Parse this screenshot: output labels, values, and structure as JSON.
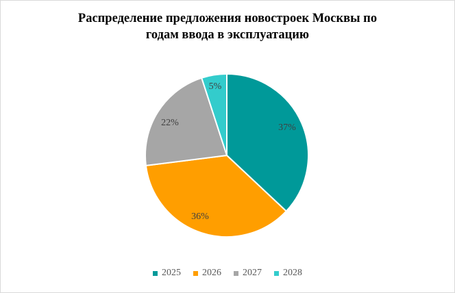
{
  "chart_data": {
    "type": "pie",
    "title_lines": [
      "Распределение предложения новостроек Москвы по",
      "годам ввода в эксплуатацию"
    ],
    "categories": [
      "2025",
      "2026",
      "2027",
      "2028"
    ],
    "values": [
      37,
      36,
      22,
      5
    ],
    "labels": [
      "37%",
      "36%",
      "22%",
      "5%"
    ],
    "colors": [
      "#009999",
      "#FF9E00",
      "#A6A6A6",
      "#33CCCC"
    ],
    "legend_position": "bottom"
  }
}
